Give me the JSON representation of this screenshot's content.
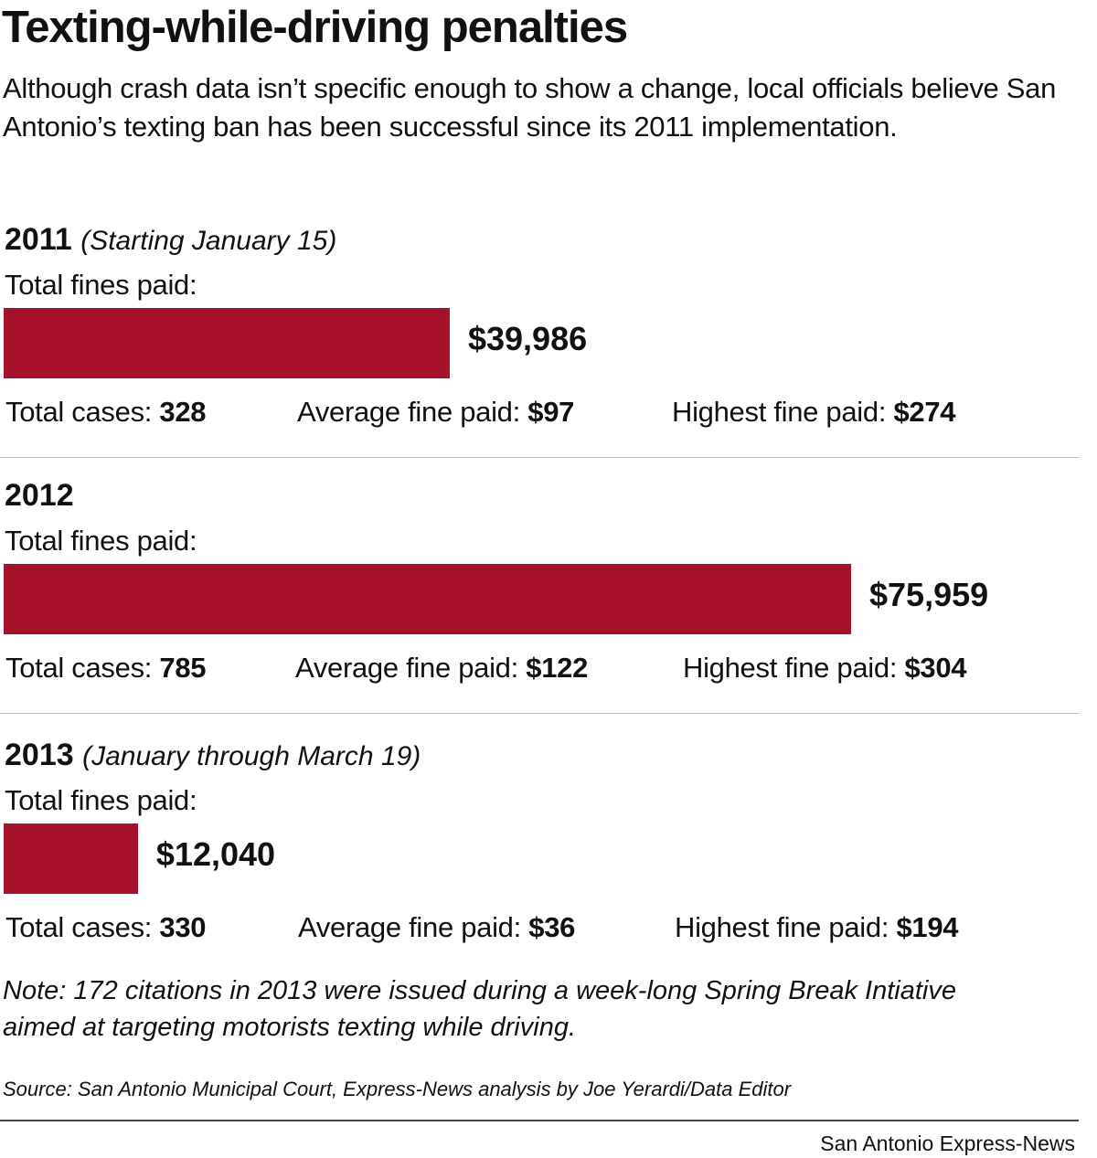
{
  "title": "Texting-while-driving penalties",
  "subtitle": "Although crash data isn’t specific enough to show a change, local officials believe San Antonio’s texting ban has been successful since its 2011 implementation.",
  "colors": {
    "bar": "#a8112a"
  },
  "chart_data": {
    "type": "bar",
    "orientation": "horizontal",
    "categories": [
      "2011",
      "2012",
      "2013"
    ],
    "values": [
      39986,
      75959,
      12040
    ],
    "sections": [
      {
        "year": "2011",
        "qualifier": "(Starting January 15)",
        "label": "Total fines paid:",
        "value": 39986,
        "value_label": "$39,986",
        "cases_label": "Total cases:",
        "cases": "328",
        "avg_label": "Average fine paid:",
        "avg": "$97",
        "high_label": "Highest fine paid:",
        "high": "$274"
      },
      {
        "year": "2012",
        "qualifier": "",
        "label": "Total fines paid:",
        "value": 75959,
        "value_label": "$75,959",
        "cases_label": "Total cases:",
        "cases": "785",
        "avg_label": "Average fine paid:",
        "avg": "$122",
        "high_label": "Highest fine paid:",
        "high": "$304"
      },
      {
        "year": "2013",
        "qualifier": "(January through March 19)",
        "label": "Total fines paid:",
        "value": 12040,
        "value_label": "$12,040",
        "cases_label": "Total cases:",
        "cases": "330",
        "avg_label": "Average fine paid:",
        "avg": "$36",
        "high_label": "Highest fine paid:",
        "high": "$194"
      }
    ]
  },
  "note_line1": "Note: 172 citations in 2013 were issued during a week-long Spring Break Intiative",
  "note_line2": "aimed at targeting motorists texting while driving.",
  "source": "Source: San Antonio Municipal Court, Express-News analysis by Joe Yerardi/Data Editor",
  "credit": "San Antonio Express-News"
}
